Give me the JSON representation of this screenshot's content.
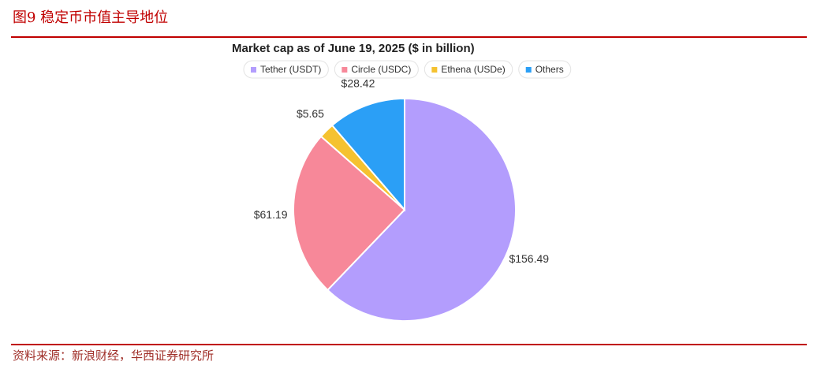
{
  "figure_title": "图9 稳定币市值主导地位",
  "source": "资料来源：新浪财经，华西证券研究所",
  "chart_data": {
    "type": "pie",
    "title": "Market cap as of June 19, 2025 ($ in billion)",
    "categories": [
      "Tether (USDT)",
      "Circle (USDC)",
      "Ethena (USDe)",
      "Others"
    ],
    "values": [
      156.49,
      61.19,
      5.65,
      28.42
    ],
    "value_labels": [
      "$156.49",
      "$61.19",
      "$5.65",
      "$28.42"
    ],
    "colors": [
      "#b39dfd",
      "#f78899",
      "#f5c230",
      "#2b9ff6"
    ],
    "legend": "top"
  }
}
